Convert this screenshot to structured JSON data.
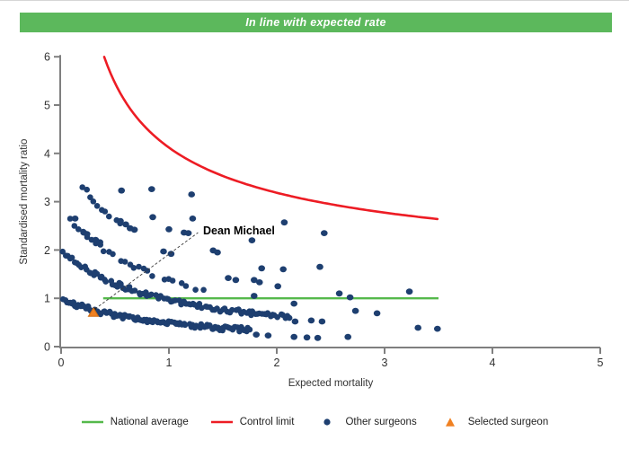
{
  "banner": {
    "title": "In line with expected rate",
    "bg_color": "#5cb85c",
    "text_color": "#ffffff"
  },
  "chart_data": {
    "type": "scatter",
    "title": "",
    "xlabel": "Expected mortality",
    "ylabel": "Standardised mortality ratio",
    "xlim": [
      0,
      5
    ],
    "ylim": [
      0,
      6
    ],
    "x_ticks": [
      0,
      1,
      2,
      3,
      4,
      5
    ],
    "y_ticks": [
      0,
      1,
      2,
      3,
      4,
      5,
      6
    ],
    "grid": false,
    "axis_color": "#7f7f7f",
    "tick_label_color": "#333333",
    "national_average": {
      "label": "National average",
      "y": 1.0,
      "x_start": 0.39,
      "x_end": 3.5,
      "color": "#55b94b",
      "width": 2.4
    },
    "control_limit": {
      "label": "Control limit",
      "formula": "y = offset + c / x^b",
      "offset": 1,
      "c": 3.12,
      "b": 0.514,
      "x_start": 0.4,
      "x_end": 3.5,
      "y_max": 6,
      "color": "#ed1c24",
      "width": 2.6
    },
    "other_surgeons": {
      "label": "Other surgeons",
      "color": "#1e3f70",
      "bands_formula": "y = n / (1+x)^exp  (dense integer-death bands of the funnel)",
      "band_exponent": 1.05,
      "bands": [
        {
          "n": 1.0,
          "x_start": 0.02,
          "x_end": 1.76,
          "step": 0.016,
          "skip": 0.05
        },
        {
          "n": 2.0,
          "x_start": 0.02,
          "x_end": 2.12,
          "step": 0.02,
          "skip": 0.12
        },
        {
          "n": 2.85,
          "x_start": 0.04,
          "x_end": 1.35,
          "step": 0.04,
          "skip": 0.28
        },
        {
          "n": 4.0,
          "x_start": 0.2,
          "x_end": 0.55,
          "step": 0.035,
          "skip": 0.12
        }
      ],
      "points": [
        [
          0.56,
          3.23
        ],
        [
          0.84,
          3.26
        ],
        [
          1.21,
          3.15
        ],
        [
          0.13,
          2.65
        ],
        [
          0.55,
          2.6
        ],
        [
          0.6,
          2.53
        ],
        [
          0.85,
          2.68
        ],
        [
          1.22,
          2.65
        ],
        [
          0.21,
          2.36
        ],
        [
          0.24,
          2.33
        ],
        [
          0.32,
          2.21
        ],
        [
          0.36,
          2.16
        ],
        [
          0.64,
          2.45
        ],
        [
          0.68,
          2.42
        ],
        [
          1.0,
          2.43
        ],
        [
          1.14,
          2.36
        ],
        [
          1.18,
          2.35
        ],
        [
          0.95,
          1.97
        ],
        [
          1.02,
          1.92
        ],
        [
          1.41,
          1.99
        ],
        [
          1.45,
          1.95
        ],
        [
          1.77,
          2.2
        ],
        [
          2.07,
          2.57
        ],
        [
          2.44,
          2.35
        ],
        [
          2.4,
          1.65
        ],
        [
          1.86,
          1.62
        ],
        [
          2.06,
          1.6
        ],
        [
          1.55,
          1.42
        ],
        [
          1.62,
          1.38
        ],
        [
          1.79,
          1.38
        ],
        [
          1.84,
          1.33
        ],
        [
          2.01,
          1.25
        ],
        [
          1.79,
          1.05
        ],
        [
          2.16,
          0.89
        ],
        [
          2.17,
          0.52
        ],
        [
          2.32,
          0.54
        ],
        [
          2.42,
          0.52
        ],
        [
          2.58,
          1.1
        ],
        [
          2.68,
          1.02
        ],
        [
          2.73,
          0.74
        ],
        [
          2.93,
          0.69
        ],
        [
          3.23,
          1.14
        ],
        [
          3.31,
          0.39
        ],
        [
          3.49,
          0.37
        ],
        [
          1.81,
          0.25
        ],
        [
          1.92,
          0.23
        ],
        [
          2.16,
          0.2
        ],
        [
          2.28,
          0.19
        ],
        [
          2.38,
          0.18
        ],
        [
          2.66,
          0.2
        ]
      ]
    },
    "selected_surgeon": {
      "label": "Selected surgeon",
      "x": 0.3,
      "y": 0.71,
      "color": "#f08122",
      "stroke": "#cf6c12"
    },
    "annotation": {
      "text": "Dean Michael",
      "text_x": 1.3,
      "text_y": 2.32,
      "line_from": [
        0.315,
        0.78
      ],
      "line_to": [
        1.27,
        2.36
      ],
      "line_color": "#3c3c3c"
    }
  },
  "legend": [
    {
      "label": "National average",
      "marker": "line",
      "color": "#55b94b"
    },
    {
      "label": "Control limit",
      "marker": "line",
      "color": "#ed1c24"
    },
    {
      "label": "Other surgeons",
      "marker": "dot",
      "color": "#1e3f70"
    },
    {
      "label": "Selected surgeon",
      "marker": "triangle",
      "color": "#f08122"
    }
  ]
}
